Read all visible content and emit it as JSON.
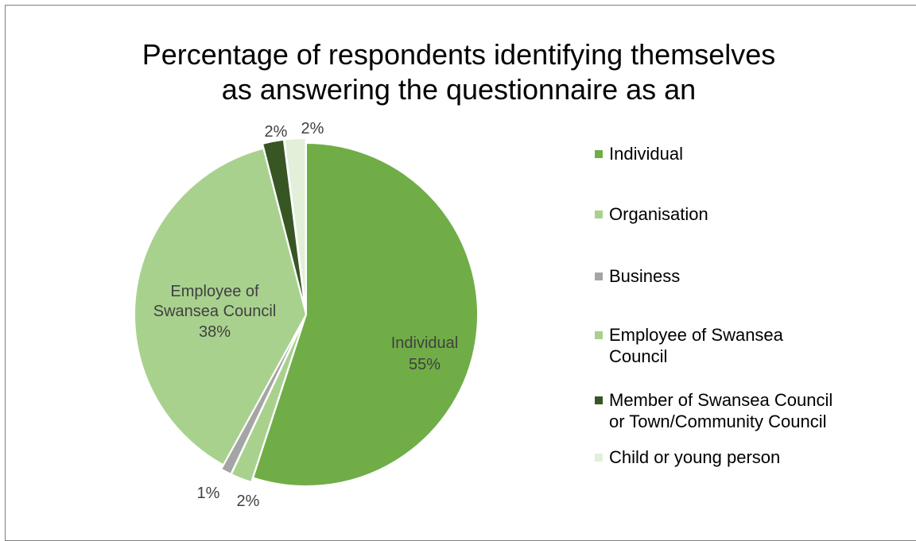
{
  "chart_data": {
    "type": "pie",
    "title": "Percentage of respondents identifying themselves as answering the questionnaire as an",
    "legend_position": "right",
    "slices": [
      {
        "label": "Individual",
        "value": 55,
        "value_label": "55%",
        "color": "#70ad47"
      },
      {
        "label": "Organisation",
        "value": 2,
        "value_label": "2%",
        "color": "#a9d18e"
      },
      {
        "label": "Business",
        "value": 1,
        "value_label": "1%",
        "color": "#a5a5a5"
      },
      {
        "label": "Employee of Swansea Council",
        "value": 38,
        "value_label": "38%",
        "color": "#a9d18e"
      },
      {
        "label": "Member of Swansea Council or Town/Community Council",
        "value": 2,
        "value_label": "2%",
        "color": "#375623"
      },
      {
        "label": "Child or young person",
        "value": 2,
        "value_label": "2%",
        "color": "#e2efd9"
      }
    ],
    "in_slice_labels": {
      "individual": [
        "Individual",
        "55%"
      ],
      "employee": [
        "Employee of",
        "Swansea Council",
        "38%"
      ]
    },
    "legend_lines": [
      [
        "Individual"
      ],
      [
        "Organisation"
      ],
      [
        "Business"
      ],
      [
        "Employee of Swansea",
        "Council"
      ],
      [
        "Member of Swansea Council",
        "or Town/Community Council"
      ],
      [
        "Child or young person"
      ]
    ]
  }
}
